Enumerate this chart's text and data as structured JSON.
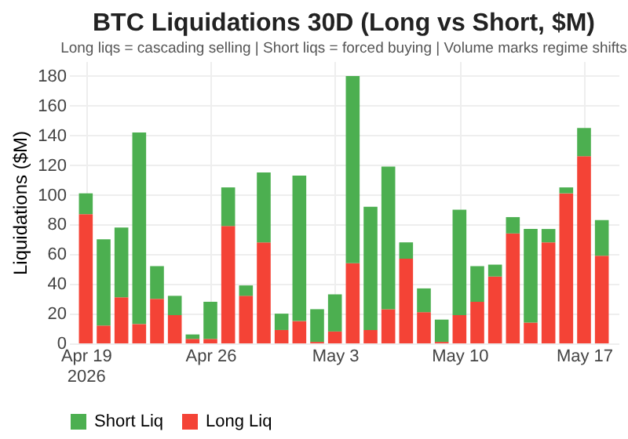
{
  "chart_data": {
    "type": "bar",
    "title": "BTC Liquidations 30D (Long vs Short, $M)",
    "subtitle": "Long liqs = cascading selling | Short liqs = forced buying | Volume marks regime shifts",
    "ylabel": "Liquidations ($M)",
    "stacked": true,
    "grid": true,
    "legend": "bottom",
    "x": [
      "2026-04-19",
      "2026-04-20",
      "2026-04-21",
      "2026-04-22",
      "2026-04-23",
      "2026-04-24",
      "2026-04-25",
      "2026-04-26",
      "2026-04-27",
      "2026-04-28",
      "2026-04-29",
      "2026-04-30",
      "2026-05-01",
      "2026-05-02",
      "2026-05-03",
      "2026-05-04",
      "2026-05-05",
      "2026-05-06",
      "2026-05-07",
      "2026-05-08",
      "2026-05-09",
      "2026-05-10",
      "2026-05-11",
      "2026-05-12",
      "2026-05-13",
      "2026-05-14",
      "2026-05-15",
      "2026-05-16",
      "2026-05-17",
      "2026-05-18"
    ],
    "series": [
      {
        "name": "Long Liq",
        "color": "#f44336",
        "values": [
          87,
          12,
          31,
          13,
          30,
          19,
          3,
          3,
          79,
          32,
          68,
          9,
          15,
          1,
          8,
          54,
          9,
          23,
          57,
          21,
          1,
          19,
          28,
          45,
          74,
          14,
          68,
          101,
          126,
          59
        ]
      },
      {
        "name": "Short Liq",
        "color": "#4caf50",
        "values": [
          14,
          58,
          47,
          129,
          22,
          13,
          3,
          25,
          26,
          7,
          47,
          11,
          98,
          22,
          25,
          126,
          83,
          96,
          11,
          16,
          15,
          71,
          24,
          8,
          11,
          63,
          9,
          4,
          19,
          24
        ]
      }
    ],
    "xlim": [
      "2026-04-18T12:00",
      "2026-05-18T12:00"
    ],
    "xticks": [
      {
        "value": "2026-04-19",
        "label": "Apr 19\n2026"
      },
      {
        "value": "2026-04-26",
        "label": "Apr 26"
      },
      {
        "value": "2026-05-03",
        "label": "May 3"
      },
      {
        "value": "2026-05-10",
        "label": "May 10"
      },
      {
        "value": "2026-05-17",
        "label": "May 17"
      }
    ],
    "ylim": [
      0,
      190
    ],
    "yticks": [
      0,
      20,
      40,
      60,
      80,
      100,
      120,
      140,
      160,
      180
    ]
  }
}
